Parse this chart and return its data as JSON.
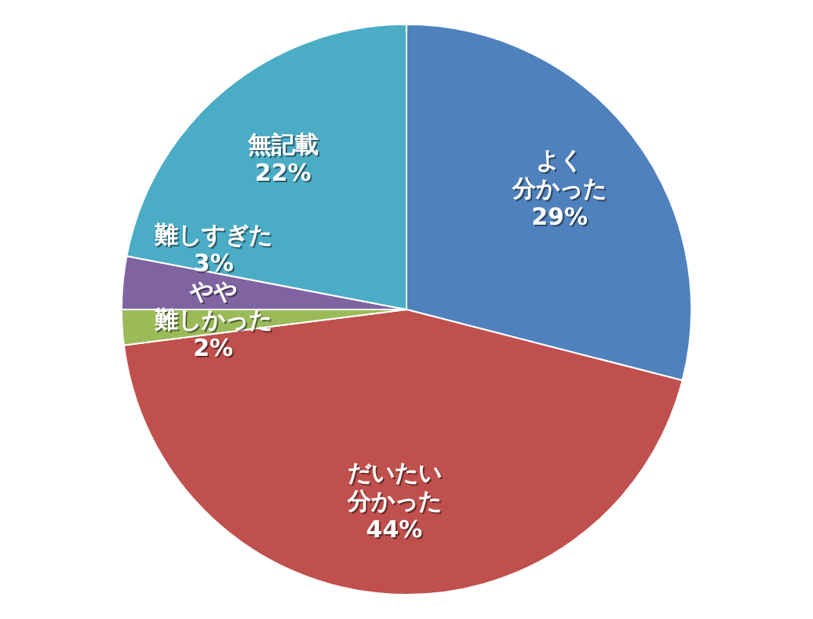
{
  "chart_data": {
    "type": "pie",
    "categories": [
      "よく分かった",
      "だいたい分かった",
      "やや難しかった",
      "難しすぎた",
      "無記載"
    ],
    "values": [
      29,
      44,
      2,
      3,
      22
    ],
    "colors": [
      "#4f81bd",
      "#c0504d",
      "#9bbb59",
      "#8064a2",
      "#4bacc6"
    ],
    "value_labels": [
      "29%",
      "44%",
      "2%",
      "3%",
      "22%"
    ],
    "legend": false
  }
}
